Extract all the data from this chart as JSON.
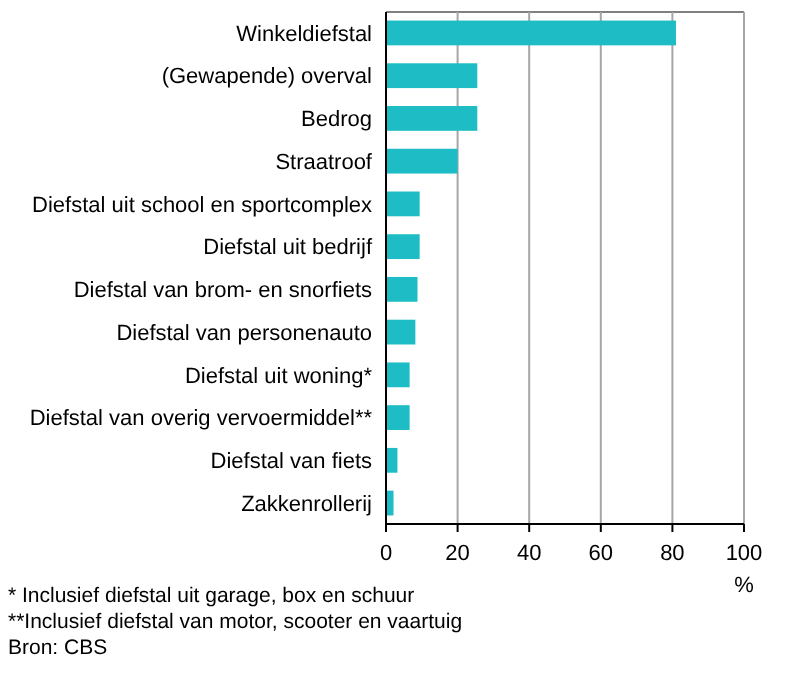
{
  "chart_data": {
    "type": "bar",
    "orientation": "horizontal",
    "categories": [
      "Winkeldiefstal",
      "(Gewapende) overval",
      "Bedrog",
      "Straatroof",
      "Diefstal uit school en sportcomplex",
      "Diefstal uit bedrijf",
      "Diefstal van brom- en snorfiets",
      "Diefstal van personenauto",
      "Diefstal uit woning*",
      "Diefstal van overig vervoermiddel**",
      "Diefstal van fiets",
      "Zakkenrollerij"
    ],
    "values": [
      81,
      25.5,
      25.5,
      20,
      9.4,
      9.4,
      8.8,
      8.2,
      6.6,
      6.6,
      3.2,
      2.1
    ],
    "color": "#1ebdc6",
    "xlim": [
      0,
      100
    ],
    "xticks": [
      0,
      20,
      40,
      60,
      80,
      100
    ],
    "xlabel": "%",
    "grid": "x",
    "annotations": [
      "* Inclusief diefstal uit garage, box en schuur",
      "**Inclusief diefstal van motor, scooter en vaartuig",
      "Bron: CBS"
    ]
  }
}
